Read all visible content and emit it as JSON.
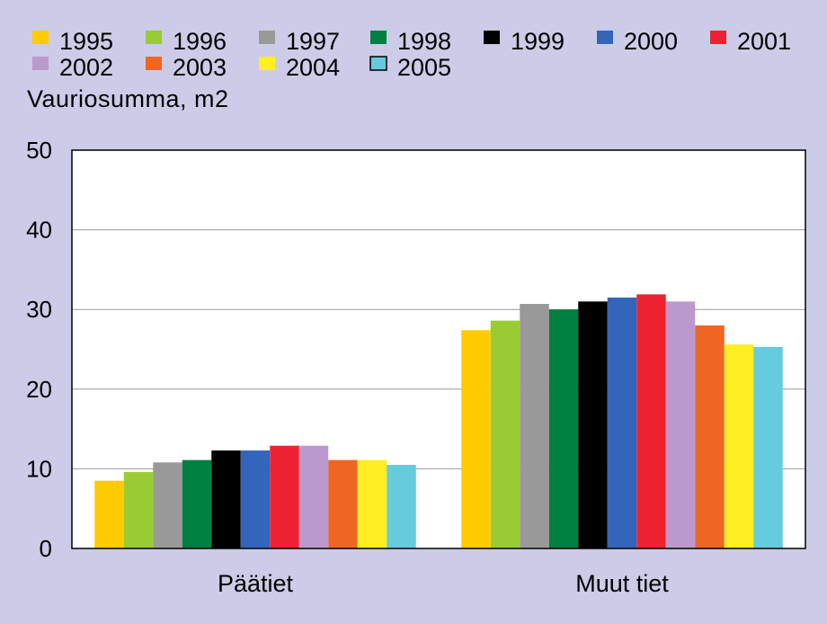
{
  "chart_data": {
    "type": "bar",
    "title": "",
    "xlabel": "",
    "ylabel": "Vauriosumma, m2",
    "categories": [
      "Päätiet",
      "Muut tiet"
    ],
    "ylim": [
      0,
      50
    ],
    "yticks": [
      "0",
      "10",
      "20",
      "30",
      "40",
      "50"
    ],
    "grid": true,
    "legend_position": "top",
    "series": [
      {
        "name": "1995",
        "color": "#ffcc00",
        "values": [
          8.5,
          27.4
        ]
      },
      {
        "name": "1996",
        "color": "#99cc33",
        "values": [
          9.6,
          28.6
        ]
      },
      {
        "name": "1997",
        "color": "#999999",
        "values": [
          10.8,
          30.7
        ]
      },
      {
        "name": "1998",
        "color": "#008040",
        "values": [
          11.1,
          30.0
        ]
      },
      {
        "name": "1999",
        "color": "#000000",
        "values": [
          12.3,
          31.0
        ]
      },
      {
        "name": "2000",
        "color": "#3366bb",
        "values": [
          12.3,
          31.5
        ]
      },
      {
        "name": "2001",
        "color": "#ee2233",
        "values": [
          12.9,
          31.9
        ]
      },
      {
        "name": "2002",
        "color": "#bb99cc",
        "values": [
          12.9,
          31.0
        ]
      },
      {
        "name": "2003",
        "color": "#ee6622",
        "values": [
          11.1,
          28.0
        ]
      },
      {
        "name": "2004",
        "color": "#ffee22",
        "values": [
          11.1,
          25.6
        ]
      },
      {
        "name": "2005",
        "color": "#66ccdd",
        "values": [
          10.5,
          25.3
        ]
      }
    ]
  }
}
